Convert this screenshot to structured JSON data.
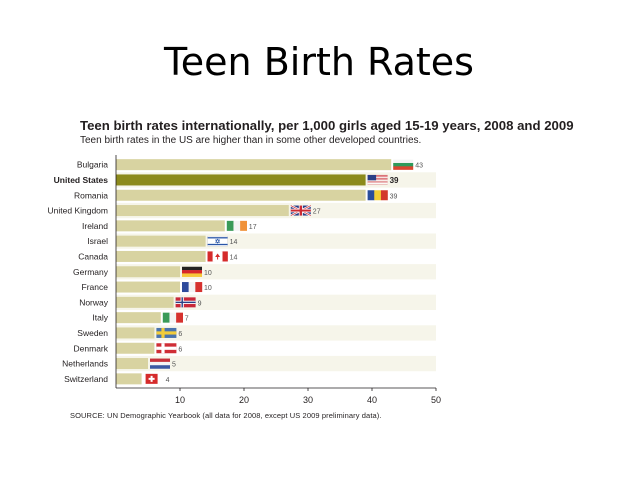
{
  "slide": {
    "title": "Teen Birth Rates"
  },
  "chart_data": {
    "type": "bar",
    "orientation": "horizontal",
    "title": "Teen birth rates internationally, per 1,000 girls aged 15-19 years, 2008 and 2009",
    "subtitle": "Teen birth rates in the US are higher than in some other developed countries.",
    "source": "SOURCE: UN Demographic Yearbook (all data for 2008, except US 2009 preliminary data).",
    "categories": [
      "Bulgaria",
      "United States",
      "Romania",
      "United Kingdom",
      "Ireland",
      "Israel",
      "Canada",
      "Germany",
      "France",
      "Norway",
      "Italy",
      "Sweden",
      "Denmark",
      "Netherlands",
      "Switzerland"
    ],
    "values": [
      43,
      39,
      39,
      27,
      17,
      14,
      14,
      10,
      10,
      9,
      7,
      6,
      6,
      5,
      4
    ],
    "value_labels": [
      "43",
      "39",
      "39",
      "27",
      "17",
      "14",
      "14",
      "10",
      "10",
      "9",
      "7",
      "6",
      "6",
      "5",
      "4"
    ],
    "highlight": "United States",
    "xlim": [
      0,
      50
    ],
    "xticks": [
      10,
      20,
      30,
      40,
      50
    ],
    "xtick_labels": [
      "10",
      "20",
      "30",
      "40",
      "50"
    ],
    "colors": {
      "bar": "#d8d3a1",
      "highlight": "#8c8a1c",
      "row_alt": "#ece9d1",
      "axis": "#231f20"
    },
    "flags": [
      "bulgaria-flag-icon",
      "usa-flag-icon",
      "romania-flag-icon",
      "uk-flag-icon",
      "ireland-flag-icon",
      "israel-flag-icon",
      "canada-flag-icon",
      "germany-flag-icon",
      "france-flag-icon",
      "norway-flag-icon",
      "italy-flag-icon",
      "sweden-flag-icon",
      "denmark-flag-icon",
      "netherlands-flag-icon",
      "switzerland-flag-icon"
    ]
  }
}
